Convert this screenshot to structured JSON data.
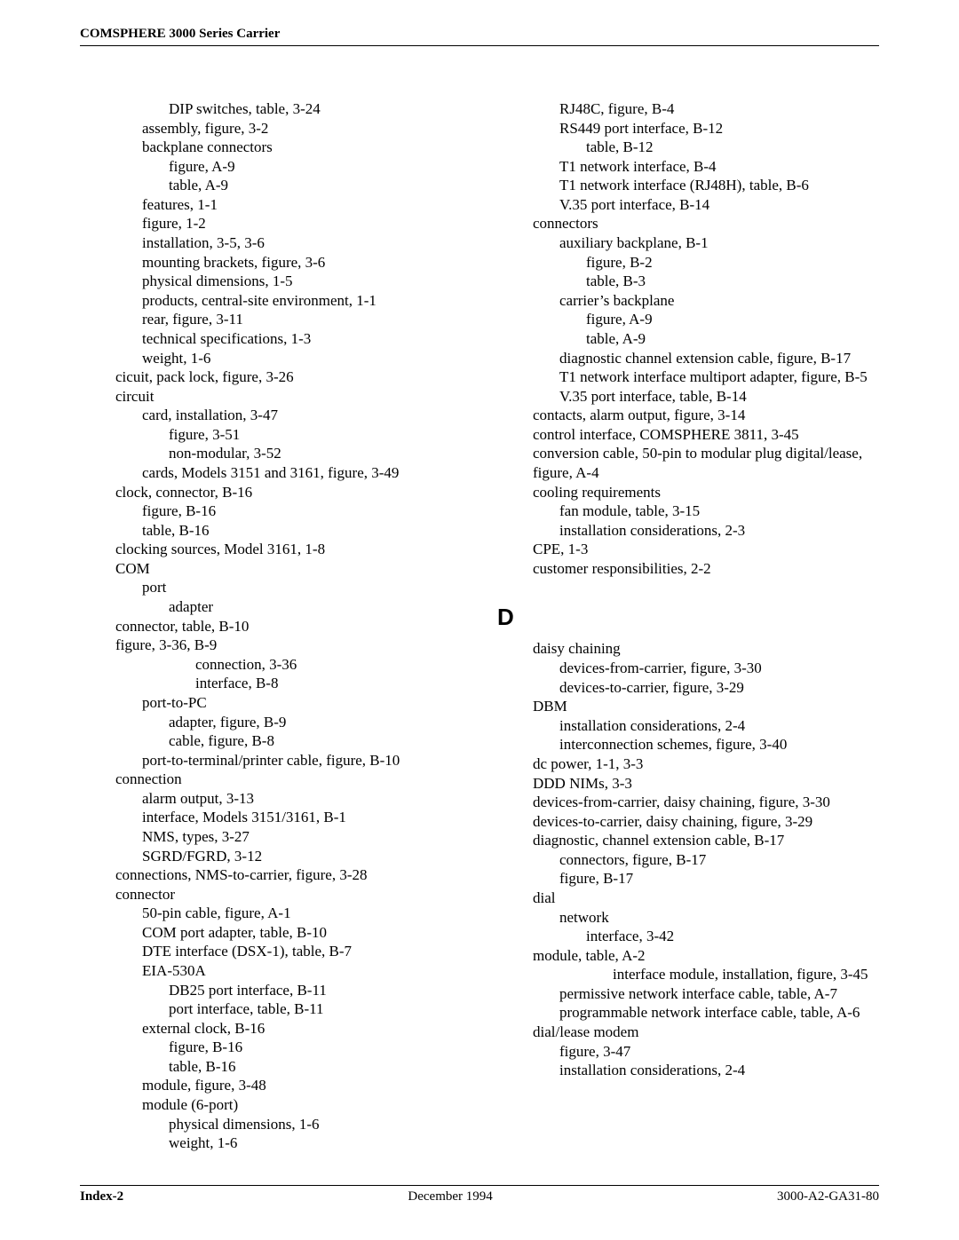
{
  "header": {
    "title": "COMSPHERE 3000 Series Carrier"
  },
  "footer": {
    "left": "Index-2",
    "center": "December 1994",
    "right": "3000-A2-GA31-80"
  },
  "leftColumn": [
    {
      "lvl": 2,
      "t": "DIP switches, table, 3-24"
    },
    {
      "lvl": 1,
      "t": "assembly, figure, 3-2"
    },
    {
      "lvl": 1,
      "t": "backplane connectors"
    },
    {
      "lvl": 2,
      "t": "figure, A-9"
    },
    {
      "lvl": 2,
      "t": "table, A-9"
    },
    {
      "lvl": 1,
      "t": "features, 1-1"
    },
    {
      "lvl": 1,
      "t": "figure, 1-2"
    },
    {
      "lvl": 1,
      "t": "installation, 3-5, 3-6"
    },
    {
      "lvl": 1,
      "t": "mounting brackets, figure, 3-6"
    },
    {
      "lvl": 1,
      "t": "physical dimensions, 1-5"
    },
    {
      "lvl": 1,
      "t": "products, central-site environment, 1-1"
    },
    {
      "lvl": 1,
      "t": "rear, figure, 3-11"
    },
    {
      "lvl": 1,
      "t": "technical specifications, 1-3"
    },
    {
      "lvl": 1,
      "t": "weight, 1-6"
    },
    {
      "lvl": 0,
      "t": "cicuit, pack lock, figure, 3-26"
    },
    {
      "lvl": 0,
      "t": "circuit"
    },
    {
      "lvl": 1,
      "t": "card, installation, 3-47"
    },
    {
      "lvl": 2,
      "t": "figure, 3-51"
    },
    {
      "lvl": 2,
      "t": "non-modular, 3-52"
    },
    {
      "lvl": 1,
      "t": "cards, Models 3151 and 3161, figure, 3-49"
    },
    {
      "lvl": 0,
      "t": "clock, connector, B-16"
    },
    {
      "lvl": 1,
      "t": "figure, B-16"
    },
    {
      "lvl": 1,
      "t": "table, B-16"
    },
    {
      "lvl": 0,
      "t": "clocking sources, Model 3161, 1-8"
    },
    {
      "lvl": 0,
      "t": "COM"
    },
    {
      "lvl": 1,
      "t": "port"
    },
    {
      "lvl": 2,
      "t": "adapter"
    },
    {
      "lvl": 0,
      "t": "connector, table, B-10"
    },
    {
      "lvl": 0,
      "t": "figure, 3-36, B-9"
    },
    {
      "lvl": 3,
      "t": "connection, 3-36"
    },
    {
      "lvl": 3,
      "t": "interface, B-8"
    },
    {
      "lvl": 1,
      "t": "port-to-PC"
    },
    {
      "lvl": 2,
      "t": "adapter, figure, B-9"
    },
    {
      "lvl": 2,
      "t": "cable, figure, B-8"
    },
    {
      "lvl": 1,
      "t": "port-to-terminal/printer cable, figure, B-10"
    },
    {
      "lvl": 0,
      "t": "connection"
    },
    {
      "lvl": 1,
      "t": "alarm output, 3-13"
    },
    {
      "lvl": 1,
      "t": "interface, Models 3151/3161, B-1"
    },
    {
      "lvl": 1,
      "t": "NMS, types, 3-27"
    },
    {
      "lvl": 1,
      "t": "SGRD/FGRD, 3-12"
    },
    {
      "lvl": 0,
      "t": "connections, NMS-to-carrier, figure, 3-28"
    },
    {
      "lvl": 0,
      "t": "connector"
    },
    {
      "lvl": 1,
      "t": "50-pin cable, figure, A-1"
    },
    {
      "lvl": 1,
      "t": "COM port adapter, table, B-10"
    },
    {
      "lvl": 1,
      "t": "DTE interface (DSX-1), table, B-7"
    },
    {
      "lvl": 1,
      "t": "EIA-530A"
    },
    {
      "lvl": 2,
      "t": "DB25 port interface, B-11"
    },
    {
      "lvl": 2,
      "t": "port interface, table, B-11"
    },
    {
      "lvl": 1,
      "t": "external clock, B-16"
    },
    {
      "lvl": 2,
      "t": "figure, B-16"
    },
    {
      "lvl": 2,
      "t": "table, B-16"
    },
    {
      "lvl": 1,
      "t": "module, figure, 3-48"
    },
    {
      "lvl": 1,
      "t": "module (6-port)"
    },
    {
      "lvl": 2,
      "t": "physical dimensions, 1-6"
    },
    {
      "lvl": 2,
      "t": "weight, 1-6"
    }
  ],
  "rightTop": [
    {
      "lvl": 1,
      "t": "RJ48C, figure, B-4"
    },
    {
      "lvl": 1,
      "t": "RS449 port interface, B-12"
    },
    {
      "lvl": 2,
      "t": "table, B-12"
    },
    {
      "lvl": 1,
      "t": "T1 network interface, B-4"
    },
    {
      "lvl": 1,
      "t": "T1 network interface (RJ48H), table, B-6"
    },
    {
      "lvl": 1,
      "t": "V.35 port interface, B-14"
    },
    {
      "lvl": 0,
      "t": "connectors"
    },
    {
      "lvl": 1,
      "t": "auxiliary backplane, B-1"
    },
    {
      "lvl": 2,
      "t": "figure, B-2"
    },
    {
      "lvl": 2,
      "t": "table, B-3"
    },
    {
      "lvl": 1,
      "t": "carrier’s backplane"
    },
    {
      "lvl": 2,
      "t": "figure, A-9"
    },
    {
      "lvl": 2,
      "t": "table, A-9"
    },
    {
      "lvl": 1,
      "t": "diagnostic channel extension cable, figure, B-17"
    },
    {
      "lvl": 1,
      "t": "T1 network interface multiport adapter, figure, B-5"
    },
    {
      "lvl": 1,
      "t": "V.35 port interface, table, B-14"
    },
    {
      "lvl": 0,
      "t": "contacts, alarm output, figure, 3-14"
    },
    {
      "lvl": 0,
      "t": "control interface, COMSPHERE 3811, 3-45"
    },
    {
      "lvl": 0,
      "t": "conversion cable, 50-pin to modular plug digital/lease, figure, A-4"
    },
    {
      "lvl": 0,
      "t": "cooling requirements"
    },
    {
      "lvl": 1,
      "t": "fan module, table, 3-15"
    },
    {
      "lvl": 1,
      "t": "installation considerations, 2-3"
    },
    {
      "lvl": 0,
      "t": "CPE, 1-3"
    },
    {
      "lvl": 0,
      "t": "customer responsibilities, 2-2"
    }
  ],
  "sectionD": "D",
  "rightD": [
    {
      "lvl": 0,
      "t": "daisy chaining"
    },
    {
      "lvl": 1,
      "t": "devices-from-carrier, figure, 3-30"
    },
    {
      "lvl": 1,
      "t": "devices-to-carrier, figure, 3-29"
    },
    {
      "lvl": 0,
      "t": "DBM"
    },
    {
      "lvl": 1,
      "t": "installation considerations, 2-4"
    },
    {
      "lvl": 1,
      "t": "interconnection schemes, figure, 3-40"
    },
    {
      "lvl": 0,
      "t": "dc power, 1-1, 3-3"
    },
    {
      "lvl": 0,
      "t": "DDD NIMs, 3-3"
    },
    {
      "lvl": 0,
      "t": "devices-from-carrier, daisy chaining, figure, 3-30"
    },
    {
      "lvl": 0,
      "t": "devices-to-carrier, daisy chaining, figure, 3-29"
    },
    {
      "lvl": 0,
      "t": "diagnostic, channel extension cable, B-17"
    },
    {
      "lvl": 1,
      "t": "connectors, figure, B-17"
    },
    {
      "lvl": 1,
      "t": "figure, B-17"
    },
    {
      "lvl": 0,
      "t": "dial"
    },
    {
      "lvl": 1,
      "t": "network"
    },
    {
      "lvl": 2,
      "t": "interface, 3-42"
    },
    {
      "lvl": 0,
      "t": "module, table, A-2"
    },
    {
      "lvl": 3,
      "t": "interface module, installation, figure, 3-45"
    },
    {
      "lvl": 1,
      "t": "permissive network interface cable, table, A-7"
    },
    {
      "lvl": 1,
      "t": "programmable network interface cable, table, A-6"
    },
    {
      "lvl": 0,
      "t": "dial/lease modem"
    },
    {
      "lvl": 1,
      "t": "figure, 3-47"
    },
    {
      "lvl": 1,
      "t": "installation considerations, 2-4"
    }
  ]
}
